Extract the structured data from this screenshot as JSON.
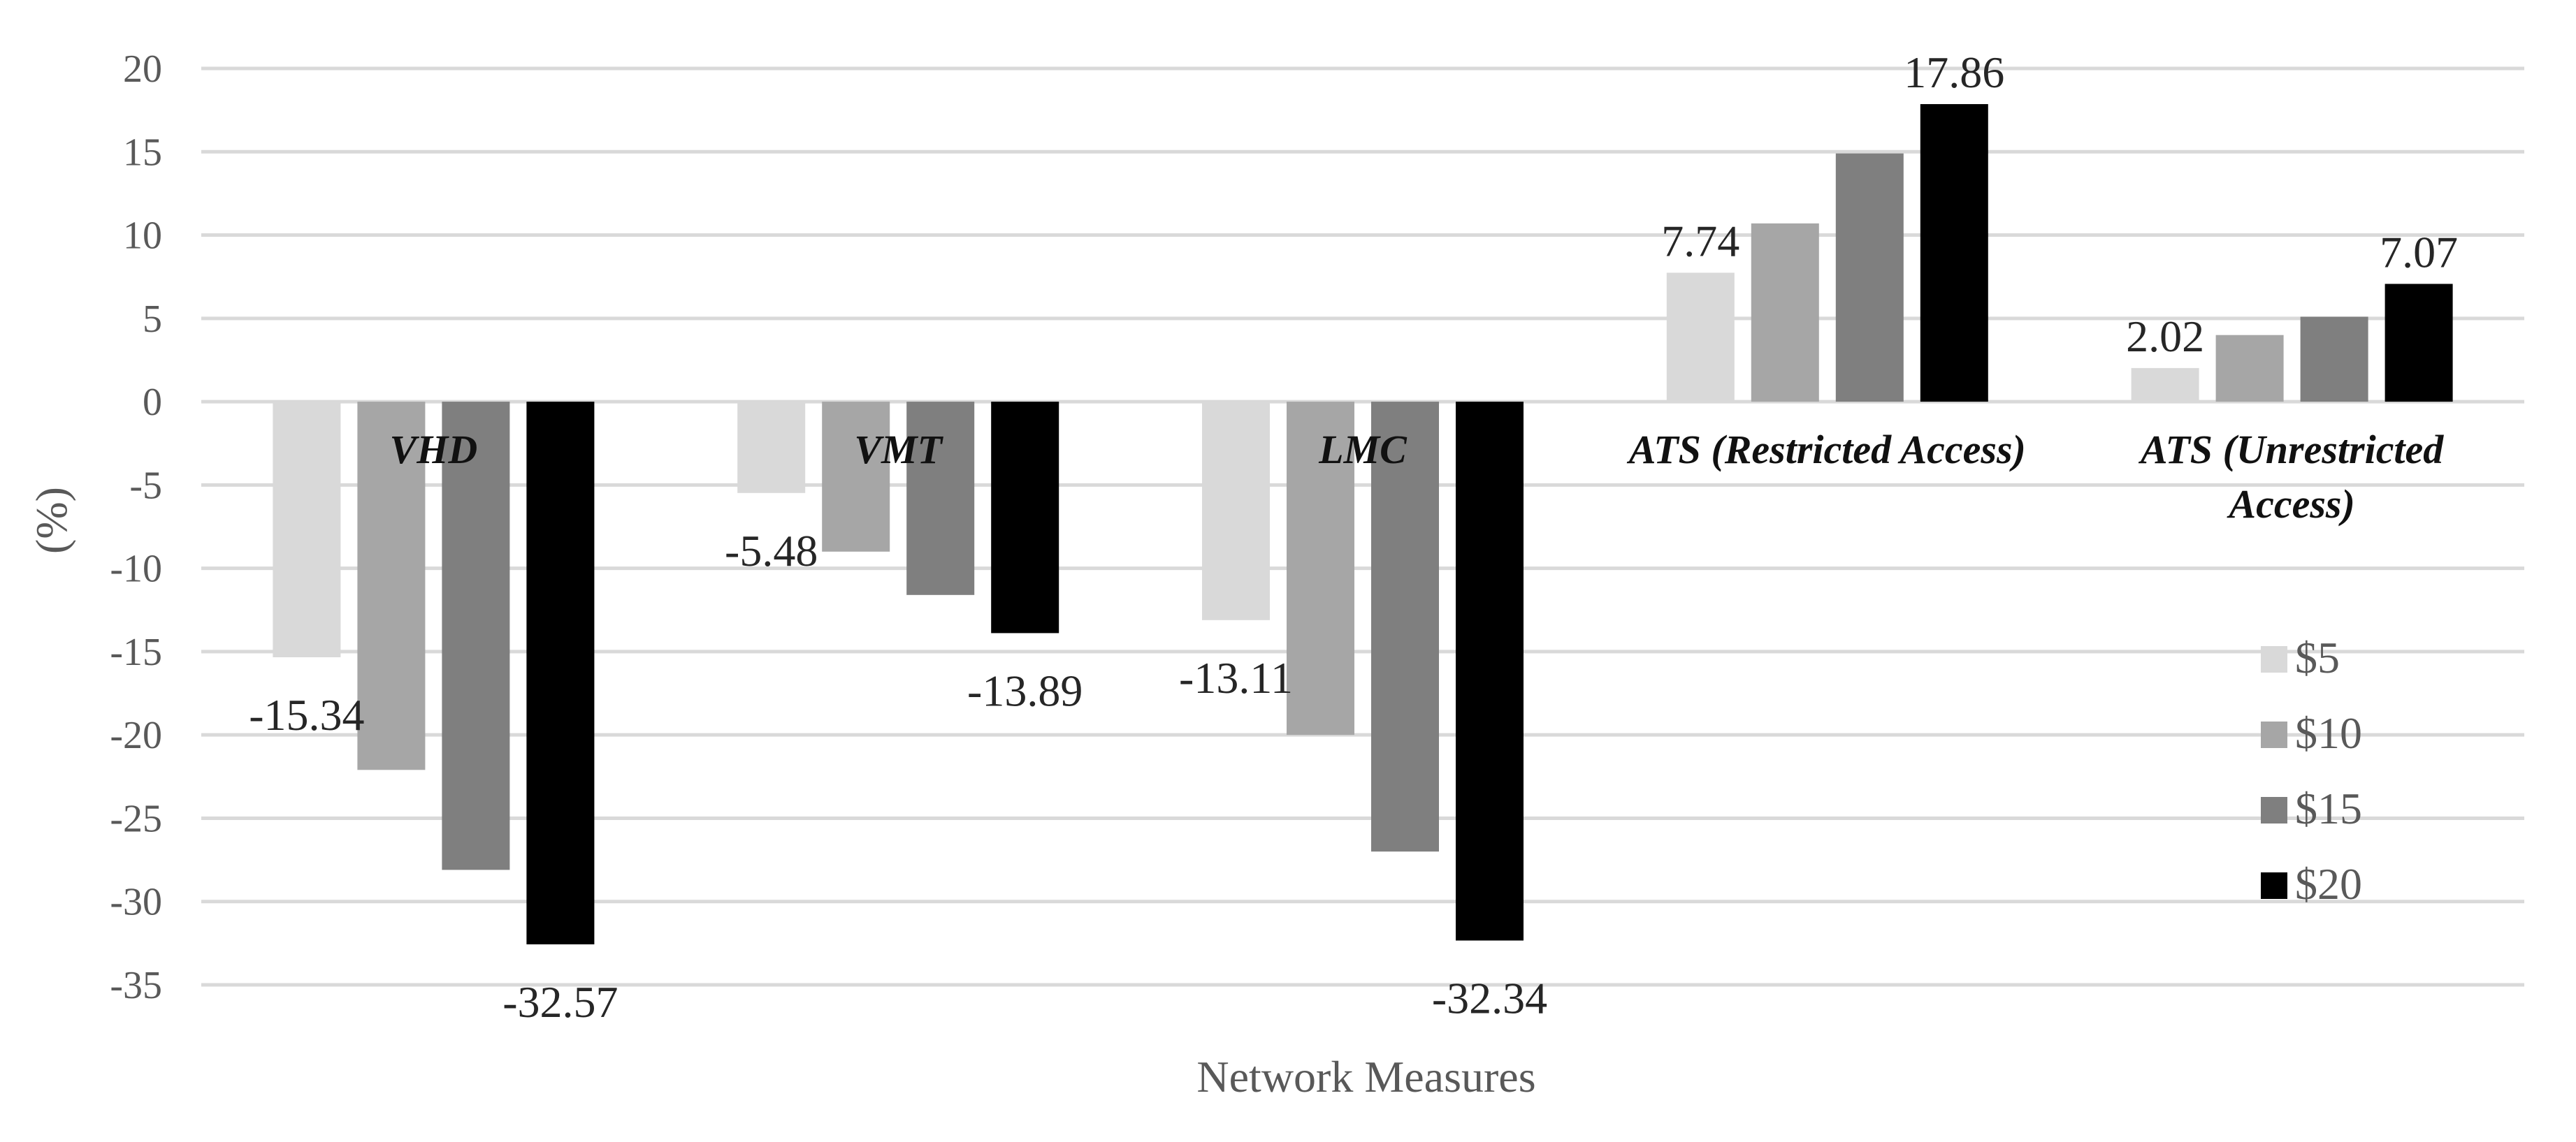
{
  "chart_data": {
    "type": "bar",
    "title": "",
    "xlabel": "Network Measures",
    "ylabel": "(%)",
    "ylim": [
      -35,
      20
    ],
    "yticks": [
      20,
      15,
      10,
      5,
      0,
      -5,
      -10,
      -15,
      -20,
      -25,
      -30,
      -35
    ],
    "grid": true,
    "legend_position": "right",
    "categories": [
      "VHD",
      "VMT",
      "LMC",
      "ATS (Restricted Access)",
      "ATS (Unrestricted Access)"
    ],
    "series": [
      {
        "name": "$5",
        "color": "#d9d9d9",
        "values": [
          -15.34,
          -5.48,
          -13.11,
          7.74,
          2.02
        ]
      },
      {
        "name": "$10",
        "color": "#a6a6a6",
        "values": [
          -22.1,
          -9.0,
          -20.0,
          10.7,
          4.0
        ]
      },
      {
        "name": "$15",
        "color": "#7f7f7f",
        "values": [
          -28.1,
          -11.6,
          -27.0,
          14.9,
          5.1
        ]
      },
      {
        "name": "$20",
        "color": "#000000",
        "values": [
          -32.57,
          -13.89,
          -32.34,
          17.86,
          7.07
        ]
      }
    ],
    "data_labels": [
      {
        "series": 0,
        "category": 0,
        "text": "-15.34"
      },
      {
        "series": 3,
        "category": 0,
        "text": "-32.57"
      },
      {
        "series": 0,
        "category": 1,
        "text": "-5.48"
      },
      {
        "series": 3,
        "category": 1,
        "text": "-13.89"
      },
      {
        "series": 0,
        "category": 2,
        "text": "-13.11"
      },
      {
        "series": 3,
        "category": 2,
        "text": "-32.34"
      },
      {
        "series": 0,
        "category": 3,
        "text": "7.74"
      },
      {
        "series": 3,
        "category": 3,
        "text": "17.86"
      },
      {
        "series": 0,
        "category": 4,
        "text": "2.02"
      },
      {
        "series": 3,
        "category": 4,
        "text": "7.07"
      }
    ]
  }
}
